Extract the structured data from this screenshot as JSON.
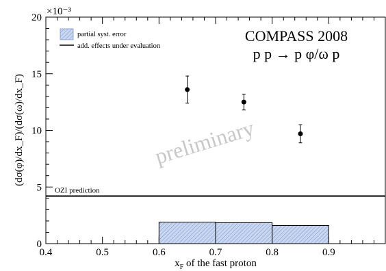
{
  "chart_data": {
    "type": "scatter",
    "title": "COMPASS 2008",
    "subtitle": "p p → p φ/ω p",
    "xlabel": "x_F of the fast proton",
    "ylabel": "(dσ(φ)/dx_F)/(dσ(ω)/dx_F)",
    "y_multiplier": "×10⁻³",
    "xlim": [
      0.4,
      1.0
    ],
    "ylim": [
      0,
      20
    ],
    "x_ticks": [
      "0.4",
      "0.5",
      "0.6",
      "0.7",
      "0.8",
      "0.9"
    ],
    "y_ticks": [
      "0",
      "5",
      "10",
      "15",
      "20"
    ],
    "points": [
      {
        "x": 0.65,
        "y": 13.6,
        "err": 1.2
      },
      {
        "x": 0.75,
        "y": 12.5,
        "err": 0.7
      },
      {
        "x": 0.85,
        "y": 9.7,
        "err": 0.8
      }
    ],
    "syst_error_bins": [
      {
        "x0": 0.6,
        "x1": 0.7,
        "value": 1.9
      },
      {
        "x0": 0.7,
        "x1": 0.8,
        "value": 1.85
      },
      {
        "x0": 0.8,
        "x1": 0.9,
        "value": 1.6
      }
    ],
    "ozi_prediction": 4.2,
    "ozi_label": "OZI prediction",
    "legend": {
      "position": "top-left",
      "entries": [
        {
          "label": "partial syst. error",
          "kind": "hatched-box"
        },
        {
          "label": "add. effects under evaluation",
          "kind": "line"
        }
      ]
    },
    "watermark": "preliminary",
    "colors": {
      "markers": "#000000",
      "syst_fill": "#c9d6f0",
      "syst_hatch": "#7c96cf",
      "watermark": "#c8c8c8"
    }
  }
}
